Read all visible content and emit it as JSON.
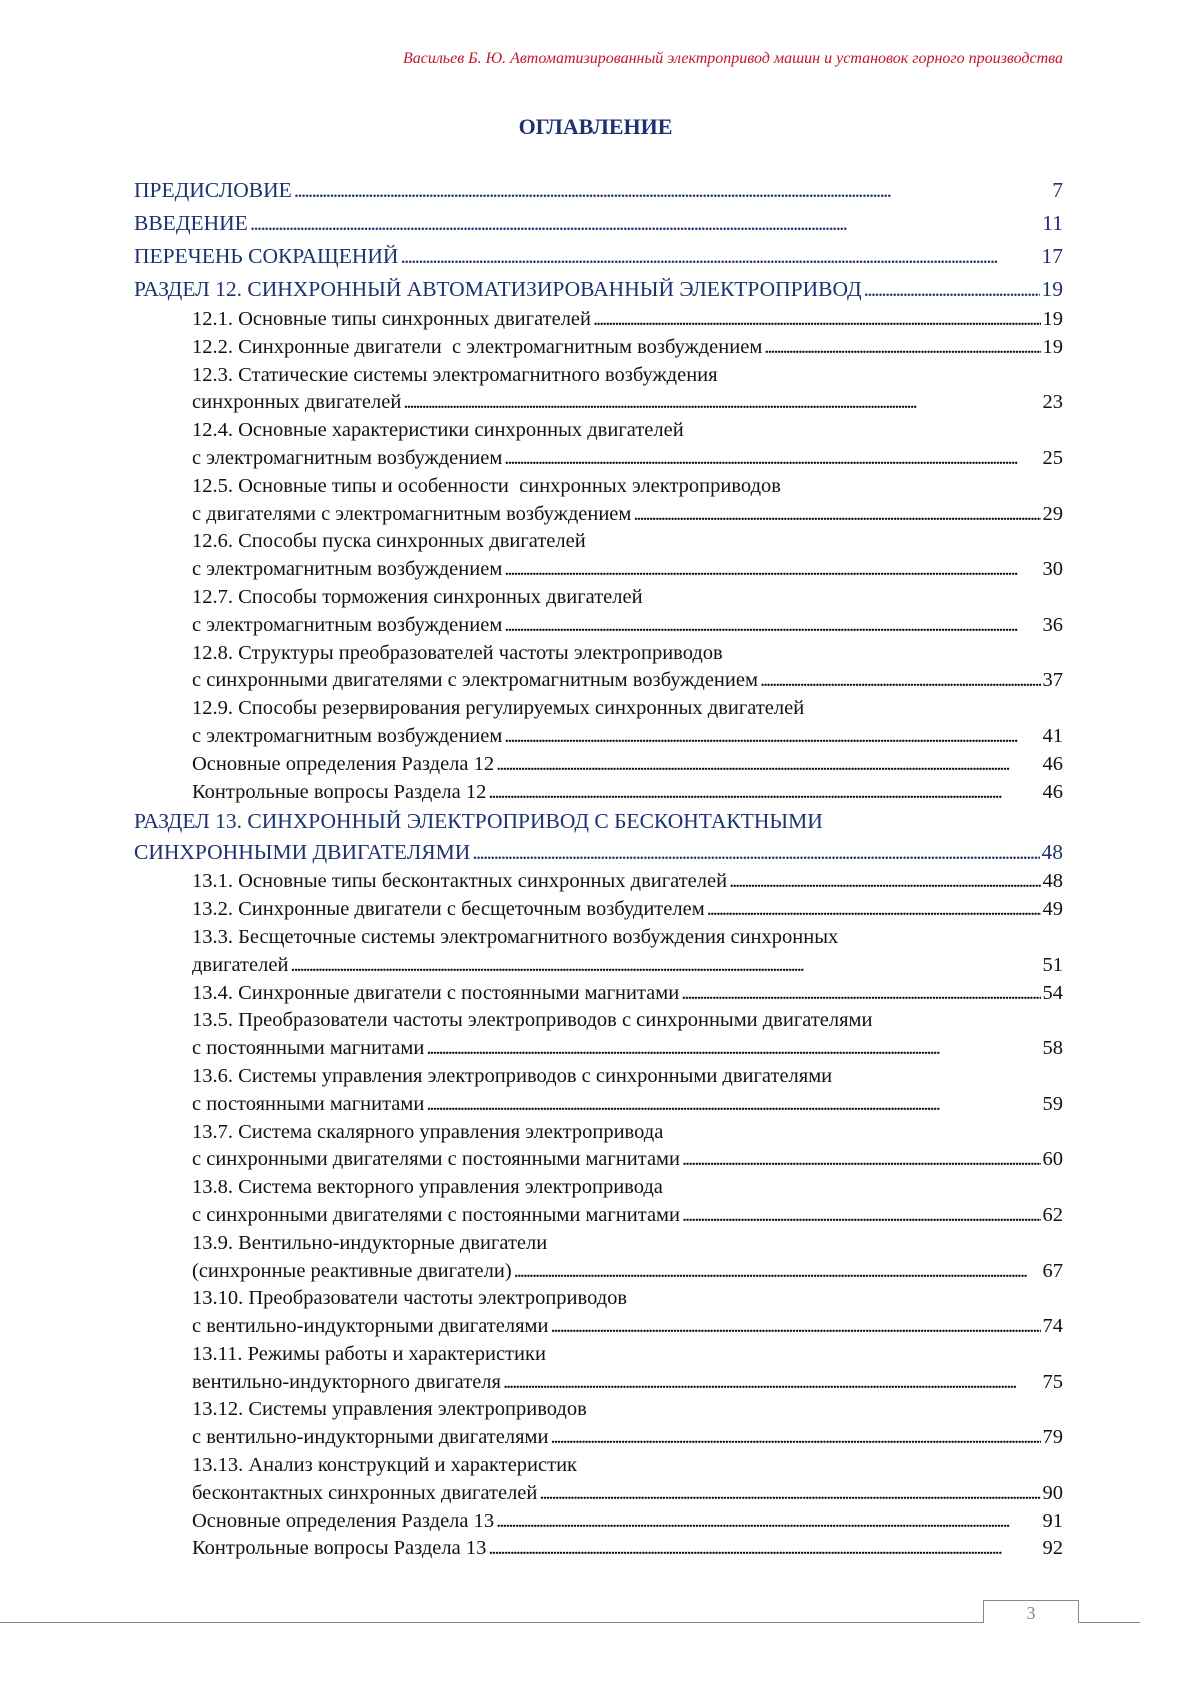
{
  "header": {
    "running_title": "Васильев Б. Ю. Автоматизированный электропривод машин и установок горного производства"
  },
  "title": "ОГЛАВЛЕНИЕ",
  "toc": [
    {
      "level": 1,
      "lines": [
        "ПРЕДИСЛОВИЕ"
      ],
      "page": "7"
    },
    {
      "level": 1,
      "lines": [
        "ВВЕДЕНИЕ"
      ],
      "page": "11"
    },
    {
      "level": 1,
      "lines": [
        "ПЕРЕЧЕНЬ СОКРАЩЕНИЙ"
      ],
      "page": "17"
    },
    {
      "level": 1,
      "lines": [
        "РАЗДЕЛ 12. СИНХРОННЫЙ АВТОМАТИЗИРОВАННЫЙ ЭЛЕКТРОПРИВОД"
      ],
      "page": "19"
    },
    {
      "level": 2,
      "lines": [
        "12.1. Основные типы синхронных двигателей"
      ],
      "page": "19"
    },
    {
      "level": 2,
      "lines": [
        "12.2. Синхронные двигатели  с электромагнитным возбуждением"
      ],
      "page": "19"
    },
    {
      "level": 2,
      "lines": [
        "12.3. Статические системы электромагнитного возбуждения",
        "синхронных двигателей"
      ],
      "page": "23"
    },
    {
      "level": 2,
      "lines": [
        "12.4. Основные характеристики синхронных двигателей",
        "с электромагнитным возбуждением"
      ],
      "page": "25"
    },
    {
      "level": 2,
      "lines": [
        "12.5. Основные типы и особенности  синхронных электроприводов",
        "с двигателями с электромагнитным возбуждением"
      ],
      "page": "29"
    },
    {
      "level": 2,
      "lines": [
        "12.6. Способы пуска синхронных двигателей",
        "с электромагнитным возбуждением"
      ],
      "page": "30"
    },
    {
      "level": 2,
      "lines": [
        "12.7. Способы торможения синхронных двигателей",
        "с электромагнитным возбуждением"
      ],
      "page": "36"
    },
    {
      "level": 2,
      "lines": [
        "12.8. Структуры преобразователей частоты электроприводов",
        "с синхронными двигателями с электромагнитным возбуждением"
      ],
      "page": "37"
    },
    {
      "level": 2,
      "lines": [
        "12.9. Способы резервирования регулируемых синхронных двигателей",
        "с электромагнитным возбуждением"
      ],
      "page": "41"
    },
    {
      "level": 2,
      "lines": [
        "Основные определения Раздела 12"
      ],
      "page": "46"
    },
    {
      "level": 2,
      "lines": [
        "Контрольные вопросы Раздела 12"
      ],
      "page": "46"
    },
    {
      "level": 1,
      "lines": [
        "РАЗДЕЛ 13. СИНХРОННЫЙ ЭЛЕКТРОПРИВОД С БЕСКОНТАКТНЫМИ",
        "СИНХРОННЫМИ ДВИГАТЕЛЯМИ"
      ],
      "page": "48"
    },
    {
      "level": 2,
      "lines": [
        "13.1. Основные типы бесконтактных синхронных двигателей"
      ],
      "page": "48"
    },
    {
      "level": 2,
      "lines": [
        "13.2. Синхронные двигатели с бесщеточным возбудителем"
      ],
      "page": "49"
    },
    {
      "level": 2,
      "lines": [
        "13.3. Бесщеточные системы электромагнитного возбуждения синхронных",
        "двигателей"
      ],
      "page": "51"
    },
    {
      "level": 2,
      "lines": [
        "13.4. Синхронные двигатели с постоянными магнитами"
      ],
      "page": "54"
    },
    {
      "level": 2,
      "lines": [
        "13.5. Преобразователи частоты электроприводов с синхронными двигателями",
        "с постоянными магнитами"
      ],
      "page": "58"
    },
    {
      "level": 2,
      "lines": [
        "13.6. Системы управления электроприводов с синхронными двигателями",
        "с постоянными магнитами"
      ],
      "page": "59"
    },
    {
      "level": 2,
      "lines": [
        "13.7. Система скалярного управления электропривода",
        "с синхронными двигателями с постоянными магнитами"
      ],
      "page": "60"
    },
    {
      "level": 2,
      "lines": [
        "13.8. Система векторного управления электропривода",
        "с синхронными двигателями с постоянными магнитами"
      ],
      "page": "62"
    },
    {
      "level": 2,
      "lines": [
        "13.9. Вентильно-индукторные двигатели",
        "(синхронные реактивные двигатели)"
      ],
      "page": "67"
    },
    {
      "level": 2,
      "lines": [
        "13.10. Преобразователи частоты электроприводов",
        "с вентильно-индукторными двигателями"
      ],
      "page": "74"
    },
    {
      "level": 2,
      "lines": [
        "13.11. Режимы работы и характеристики",
        "вентильно-индукторного двигателя"
      ],
      "page": "75"
    },
    {
      "level": 2,
      "lines": [
        "13.12. Системы управления электроприводов",
        "с вентильно-индукторными двигателями"
      ],
      "page": "79"
    },
    {
      "level": 2,
      "lines": [
        "13.13. Анализ конструкций и характеристик",
        "бесконтактных синхронных двигателей"
      ],
      "page": "90"
    },
    {
      "level": 2,
      "lines": [
        "Основные определения Раздела 13"
      ],
      "page": "91"
    },
    {
      "level": 2,
      "lines": [
        "Контрольные вопросы Раздела 13"
      ],
      "page": "92"
    }
  ],
  "footer": {
    "page_number": "3"
  },
  "colors": {
    "header": "#c0172b",
    "title": "#1c3370",
    "top_level": "#1c3370",
    "text": "#111111"
  }
}
